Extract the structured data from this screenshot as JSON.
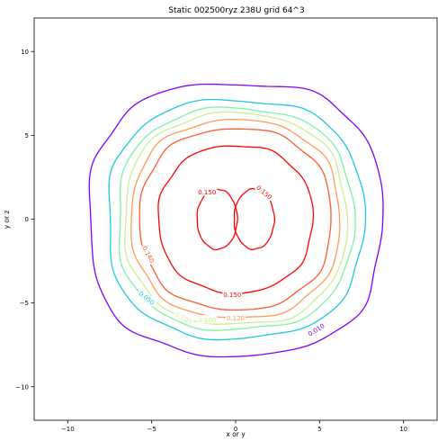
{
  "chart_data": {
    "type": "contour",
    "title": "Static 002500ryz  238U grid 64^3",
    "xlabel": "x or y",
    "ylabel": "y or z",
    "xlim": [
      -12,
      12
    ],
    "ylim": [
      -12,
      12
    ],
    "xticks": [
      -10,
      -5,
      0,
      5,
      10
    ],
    "yticks": [
      -10,
      -5,
      0,
      5,
      10
    ],
    "grid": false,
    "contour_levels": [
      {
        "level": 0.01,
        "label": "0.010",
        "color": "#8000ff"
      },
      {
        "level": 0.05,
        "label": "0.050",
        "color": "#1ac8e0"
      },
      {
        "level": 0.08,
        "label": "",
        "color": "#7cf2a8"
      },
      {
        "level": 0.1,
        "label": "0.100",
        "color": "#c8f08c"
      },
      {
        "level": 0.12,
        "label": "0.120",
        "color": "#ff9a55"
      },
      {
        "level": 0.14,
        "label": "0.140",
        "color": "#ff5a30"
      },
      {
        "level": 0.15,
        "label": "0.150",
        "color": "#ff0000"
      }
    ],
    "contours": [
      {
        "level": 0.01,
        "type": "squircle",
        "center": [
          0,
          0
        ],
        "rx": 8.7,
        "ry": 8.1,
        "exponent": 2.6
      },
      {
        "level": 0.05,
        "type": "squircle",
        "center": [
          0,
          0
        ],
        "rx": 7.6,
        "ry": 7.1,
        "exponent": 2.5
      },
      {
        "level": 0.08,
        "type": "squircle",
        "center": [
          0,
          0
        ],
        "rx": 7.0,
        "ry": 6.6,
        "exponent": 2.45
      },
      {
        "level": 0.1,
        "type": "squircle",
        "center": [
          0,
          0
        ],
        "rx": 6.6,
        "ry": 6.3,
        "exponent": 2.4
      },
      {
        "level": 0.12,
        "type": "squircle",
        "center": [
          0,
          0
        ],
        "rx": 6.2,
        "ry": 5.9,
        "exponent": 2.35
      },
      {
        "level": 0.14,
        "type": "squircle",
        "center": [
          0,
          0
        ],
        "rx": 5.7,
        "ry": 5.4,
        "exponent": 2.3
      },
      {
        "level": 0.15,
        "type": "squircle",
        "center": [
          0,
          0
        ],
        "rx": 4.6,
        "ry": 4.4,
        "exponent": 2.2
      },
      {
        "level": 0.15,
        "type": "lobe",
        "center": [
          -1.1,
          0
        ],
        "rx": 1.2,
        "ry": 1.8,
        "exponent": 2.0
      },
      {
        "level": 0.15,
        "type": "lobe",
        "center": [
          1.1,
          0
        ],
        "rx": 1.2,
        "ry": 1.8,
        "exponent": 2.0
      }
    ],
    "contour_labels": [
      {
        "text": "0.150",
        "x": -1.7,
        "y": 1.6,
        "color": "#ff0000",
        "rotate": 0
      },
      {
        "text": "0.150",
        "x": 1.7,
        "y": 1.6,
        "color": "#ff0000",
        "rotate": 40
      },
      {
        "text": "0.140",
        "x": -5.2,
        "y": -2.1,
        "color": "#ff5a30",
        "rotate": 62
      },
      {
        "text": "0.150",
        "x": -0.2,
        "y": -4.5,
        "color": "#ff0000",
        "rotate": 0
      },
      {
        "text": "0.120",
        "x": 0.0,
        "y": -5.9,
        "color": "#ff9a55",
        "rotate": 0
      },
      {
        "text": "0.100",
        "x": -3.1,
        "y": -5.9,
        "color": "#c8f08c",
        "rotate": 28
      },
      {
        "text": "0.050",
        "x": -5.3,
        "y": -4.7,
        "color": "#1ac8e0",
        "rotate": 38
      },
      {
        "text": "0.100",
        "x": -1.7,
        "y": -6.0,
        "color": "#c8f08c",
        "rotate": 0
      },
      {
        "text": "0.010",
        "x": 4.8,
        "y": -6.6,
        "color": "#8000ff",
        "rotate": -32
      }
    ]
  }
}
